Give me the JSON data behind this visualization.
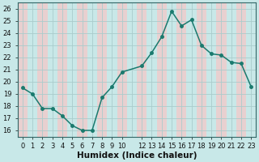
{
  "x": [
    0,
    1,
    2,
    3,
    4,
    5,
    6,
    7,
    8,
    9,
    10,
    12,
    13,
    14,
    15,
    16,
    17,
    18,
    19,
    20,
    21,
    22,
    23
  ],
  "y": [
    19.5,
    19.0,
    17.8,
    17.8,
    17.2,
    16.4,
    16.0,
    16.0,
    18.7,
    19.6,
    20.8,
    21.3,
    22.4,
    23.7,
    25.8,
    24.6,
    25.1,
    23.0,
    22.3,
    22.2,
    21.6,
    21.5,
    19.6
  ],
  "line_color": "#1a7a6e",
  "marker_color": "#1a7a6e",
  "bg_color": "#c8e8e8",
  "pink_col_color": "#e8d0d0",
  "teal_col_color": "#c8e8e8",
  "grid_line_color": "#aacccc",
  "xlabel": "Humidex (Indice chaleur)",
  "ylim": [
    15.5,
    26.5
  ],
  "xlim": [
    -0.5,
    23.5
  ],
  "yticks": [
    16,
    17,
    18,
    19,
    20,
    21,
    22,
    23,
    24,
    25,
    26
  ],
  "xticks": [
    0,
    1,
    2,
    3,
    4,
    5,
    6,
    7,
    8,
    9,
    10,
    12,
    13,
    14,
    15,
    16,
    17,
    18,
    19,
    20,
    21,
    22,
    23
  ],
  "tick_label_fontsize": 6,
  "xlabel_fontsize": 7.5,
  "marker_size": 2.5,
  "line_width": 1.1,
  "spine_color": "#336666"
}
